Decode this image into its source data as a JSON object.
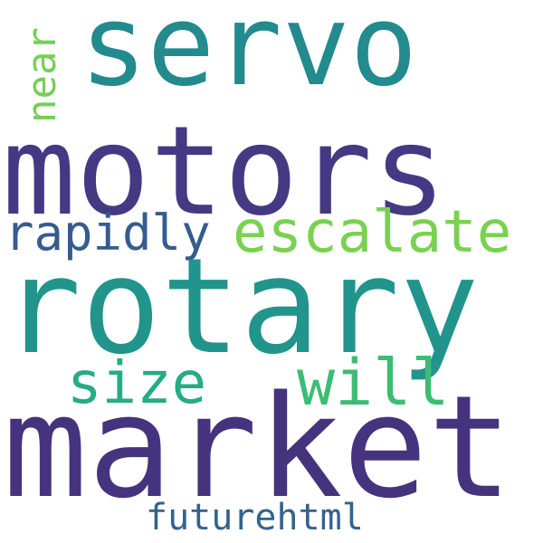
{
  "words": {
    "servo": {
      "text": "servo",
      "color": "#238a8d"
    },
    "motors": {
      "text": "motors",
      "color": "#443983"
    },
    "rotary": {
      "text": "rotary",
      "color": "#21948c"
    },
    "market": {
      "text": "market",
      "color": "#46337e"
    },
    "escalate": {
      "text": "escalate",
      "color": "#7ad151"
    },
    "rapidly": {
      "text": "rapidly",
      "color": "#365c8d"
    },
    "size": {
      "text": "size",
      "color": "#25ac82"
    },
    "will": {
      "text": "will",
      "color": "#3dbc74"
    },
    "future": {
      "text": "futurehtml",
      "color": "#33638d"
    },
    "near": {
      "text": "near",
      "color": "#75d054"
    }
  },
  "background": "#ffffff"
}
